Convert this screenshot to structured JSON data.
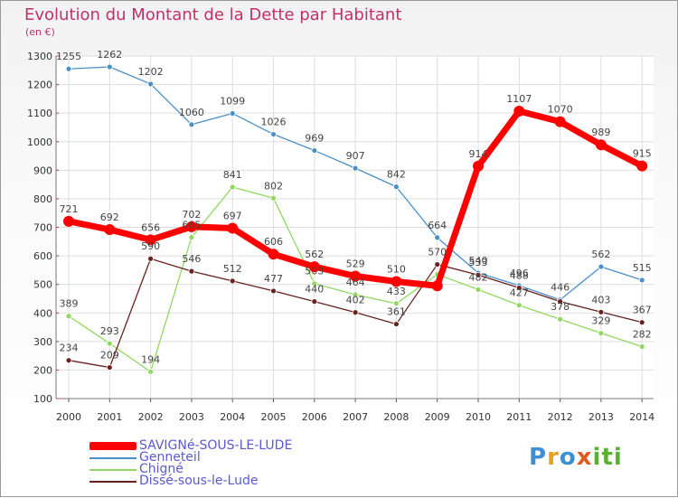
{
  "chart_data": {
    "type": "line",
    "title": "Evolution du Montant de la Dette par Habitant",
    "subtitle": "(en €)",
    "x": [
      "2000",
      "2001",
      "2002",
      "2003",
      "2004",
      "2005",
      "2006",
      "2007",
      "2008",
      "2009",
      "2010",
      "2011",
      "2012",
      "2013",
      "2014"
    ],
    "ylim": [
      100,
      1300
    ],
    "yticks": [
      100,
      200,
      300,
      400,
      500,
      600,
      700,
      800,
      900,
      1000,
      1100,
      1200,
      1300
    ],
    "grid": true,
    "legend_placement": "bottom-left",
    "series": [
      {
        "name": "SAVIGNé-SOUS-LE-LUDE",
        "color": "#ff0000",
        "values": [
          721,
          692,
          656,
          702,
          697,
          606,
          562,
          529,
          510,
          495,
          914,
          1107,
          1070,
          989,
          915
        ],
        "labels": [
          "721",
          "692",
          "656",
          "702",
          "697",
          "606",
          "562",
          "529",
          "510",
          "",
          "914",
          "1107",
          "1070",
          "989",
          "915"
        ]
      },
      {
        "name": "Genneteil",
        "color": "#4a90c8",
        "values": [
          1255,
          1262,
          1202,
          1060,
          1099,
          1026,
          969,
          907,
          842,
          664,
          540,
          496,
          446,
          562,
          515
        ],
        "labels": [
          "1255",
          "1262",
          "1202",
          "1060",
          "1099",
          "1026",
          "969",
          "907",
          "842",
          "664",
          "540",
          "496",
          "446",
          "562",
          "515"
        ]
      },
      {
        "name": "Chigné",
        "color": "#90d860",
        "values": [
          389,
          293,
          194,
          665,
          841,
          802,
          503,
          464,
          433,
          535,
          482,
          427,
          378,
          329,
          282
        ],
        "labels": [
          "389",
          "293",
          "194",
          "665",
          "841",
          "802",
          "503",
          "464",
          "433",
          "",
          "482",
          "427",
          "378",
          "329",
          "282"
        ]
      },
      {
        "name": "Dissé-sous-le-Lude",
        "color": "#6a2020",
        "values": [
          234,
          209,
          590,
          546,
          512,
          477,
          440,
          402,
          361,
          570,
          533,
          488,
          440,
          403,
          367
        ],
        "labels": [
          "234",
          "209",
          "590",
          "546",
          "512",
          "477",
          "440",
          "402",
          "361",
          "570",
          "533",
          "488",
          "",
          "403",
          "367"
        ]
      }
    ]
  },
  "logo": {
    "letters": [
      "P",
      "r",
      "o",
      "x",
      "iti"
    ]
  }
}
